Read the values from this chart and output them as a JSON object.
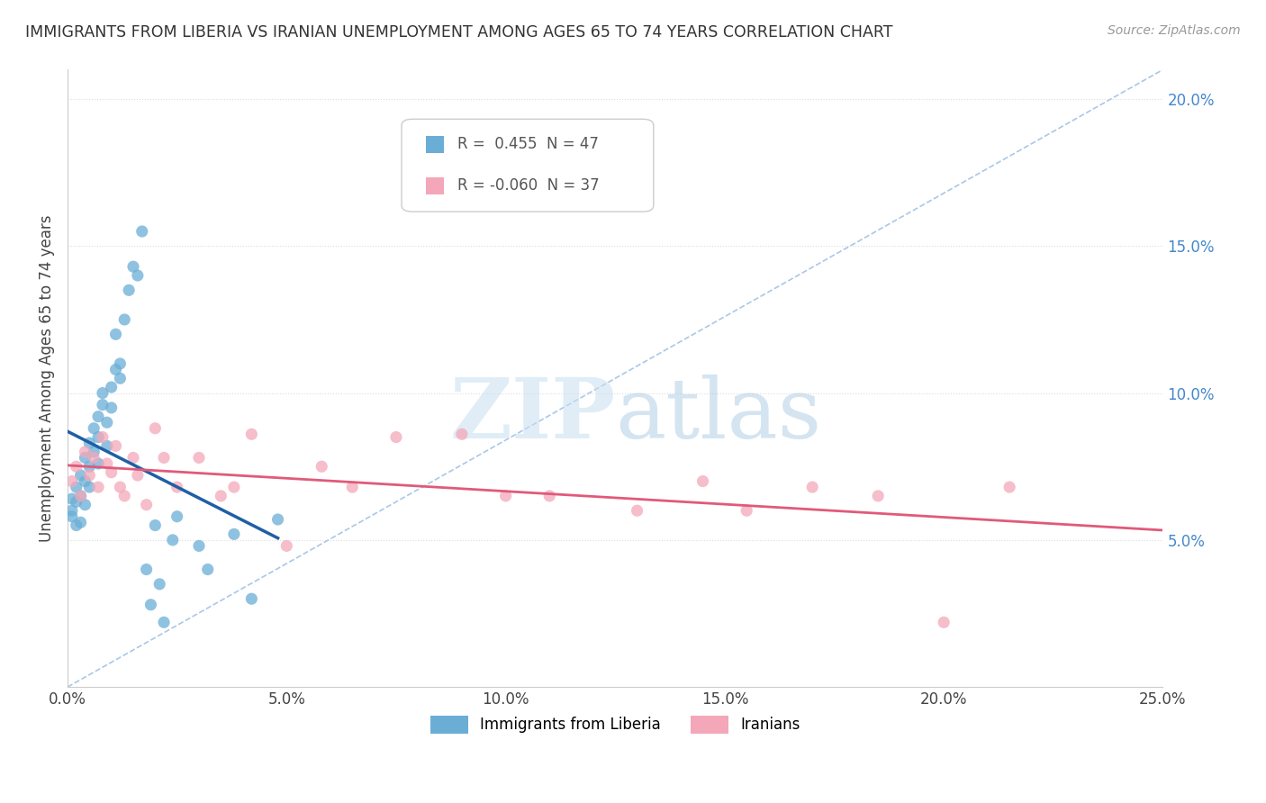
{
  "title": "IMMIGRANTS FROM LIBERIA VS IRANIAN UNEMPLOYMENT AMONG AGES 65 TO 74 YEARS CORRELATION CHART",
  "source": "Source: ZipAtlas.com",
  "ylabel": "Unemployment Among Ages 65 to 74 years",
  "x_min": 0.0,
  "x_max": 0.25,
  "y_min": 0.0,
  "y_max": 0.21,
  "x_ticks": [
    0.0,
    0.05,
    0.1,
    0.15,
    0.2,
    0.25
  ],
  "x_tick_labels": [
    "0.0%",
    "5.0%",
    "10.0%",
    "15.0%",
    "20.0%",
    "25.0%"
  ],
  "y_ticks_right": [
    0.05,
    0.1,
    0.15,
    0.2
  ],
  "y_tick_labels_right": [
    "5.0%",
    "10.0%",
    "15.0%",
    "20.0%"
  ],
  "legend_blue_r": "R =  0.455",
  "legend_blue_n": "N = 47",
  "legend_pink_r": "R = -0.060",
  "legend_pink_n": "N = 37",
  "legend_label_blue": "Immigrants from Liberia",
  "legend_label_pink": "Iranians",
  "blue_color": "#6aaed6",
  "pink_color": "#f4a7b9",
  "blue_line_color": "#1f5fa6",
  "pink_line_color": "#e05a7a",
  "dashed_line_color": "#a8c8e8",
  "watermark_zip": "ZIP",
  "watermark_atlas": "atlas",
  "blue_dots_x": [
    0.001,
    0.001,
    0.001,
    0.002,
    0.002,
    0.002,
    0.003,
    0.003,
    0.003,
    0.004,
    0.004,
    0.004,
    0.005,
    0.005,
    0.005,
    0.006,
    0.006,
    0.007,
    0.007,
    0.007,
    0.008,
    0.008,
    0.009,
    0.009,
    0.01,
    0.01,
    0.011,
    0.011,
    0.012,
    0.012,
    0.013,
    0.014,
    0.015,
    0.016,
    0.017,
    0.018,
    0.019,
    0.02,
    0.021,
    0.022,
    0.024,
    0.025,
    0.03,
    0.032,
    0.038,
    0.042,
    0.048
  ],
  "blue_dots_y": [
    0.064,
    0.06,
    0.058,
    0.068,
    0.063,
    0.055,
    0.072,
    0.065,
    0.056,
    0.078,
    0.07,
    0.062,
    0.083,
    0.075,
    0.068,
    0.088,
    0.08,
    0.092,
    0.085,
    0.076,
    0.096,
    0.1,
    0.09,
    0.082,
    0.102,
    0.095,
    0.108,
    0.12,
    0.11,
    0.105,
    0.125,
    0.135,
    0.143,
    0.14,
    0.155,
    0.04,
    0.028,
    0.055,
    0.035,
    0.022,
    0.05,
    0.058,
    0.048,
    0.04,
    0.052,
    0.03,
    0.057
  ],
  "pink_dots_x": [
    0.001,
    0.002,
    0.003,
    0.004,
    0.005,
    0.006,
    0.007,
    0.008,
    0.009,
    0.01,
    0.011,
    0.012,
    0.013,
    0.015,
    0.016,
    0.018,
    0.02,
    0.022,
    0.025,
    0.03,
    0.035,
    0.038,
    0.042,
    0.05,
    0.058,
    0.065,
    0.075,
    0.09,
    0.1,
    0.11,
    0.13,
    0.145,
    0.155,
    0.17,
    0.185,
    0.2,
    0.215
  ],
  "pink_dots_y": [
    0.07,
    0.075,
    0.065,
    0.08,
    0.072,
    0.078,
    0.068,
    0.085,
    0.076,
    0.073,
    0.082,
    0.068,
    0.065,
    0.078,
    0.072,
    0.062,
    0.088,
    0.078,
    0.068,
    0.078,
    0.065,
    0.068,
    0.086,
    0.048,
    0.075,
    0.068,
    0.085,
    0.086,
    0.065,
    0.065,
    0.06,
    0.07,
    0.06,
    0.068,
    0.065,
    0.022,
    0.068
  ]
}
